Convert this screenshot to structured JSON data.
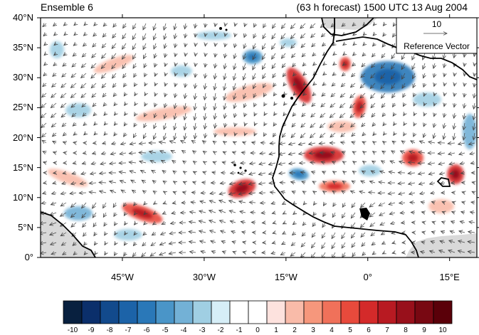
{
  "titles": {
    "left": "Ensemble 6",
    "right": "(63 h forecast) 1500 UTC 13 Aug 2004"
  },
  "map": {
    "lat_range": [
      0,
      40
    ],
    "lon_range": [
      -60,
      20
    ],
    "y_ticks": [
      {
        "lat": 40,
        "label": "40°N"
      },
      {
        "lat": 35,
        "label": "35°N"
      },
      {
        "lat": 30,
        "label": "30°N"
      },
      {
        "lat": 25,
        "label": "25°N"
      },
      {
        "lat": 20,
        "label": "20°N"
      },
      {
        "lat": 15,
        "label": "15°N"
      },
      {
        "lat": 10,
        "label": "10°N"
      },
      {
        "lat": 5,
        "label": "5°N"
      },
      {
        "lat": 0,
        "label": "0°"
      }
    ],
    "x_ticks": [
      {
        "lon": -45,
        "label": "45°W"
      },
      {
        "lon": -30,
        "label": "30°W"
      },
      {
        "lon": -15,
        "label": "15°W"
      },
      {
        "lon": 0,
        "label": "0°"
      },
      {
        "lon": 15,
        "label": "15°E"
      }
    ],
    "reference_vector": {
      "magnitude": "10",
      "label": "Reference Vector"
    }
  },
  "colorbar": {
    "labels": [
      "-10",
      "-9",
      "-8",
      "-7",
      "-6",
      "-5",
      "-4",
      "-3",
      "-2",
      "-1",
      "0",
      "1",
      "2",
      "3",
      "4",
      "5",
      "6",
      "7",
      "8",
      "9",
      "10"
    ],
    "colors": [
      "#08203f",
      "#0b2f6b",
      "#124a8c",
      "#1c63a8",
      "#2a78b8",
      "#4a95c8",
      "#73b1d6",
      "#a0cfe3",
      "#d6eef7",
      "#ffffff",
      "#ffffff",
      "#fde2de",
      "#f9bba9",
      "#f6977c",
      "#f0715a",
      "#e84a3c",
      "#d42a2a",
      "#b81a22",
      "#98101b",
      "#780812",
      "#5a0009"
    ]
  },
  "colors": {
    "land": "#d9d9d9",
    "coast": "#000000",
    "arrows": "#444444"
  }
}
